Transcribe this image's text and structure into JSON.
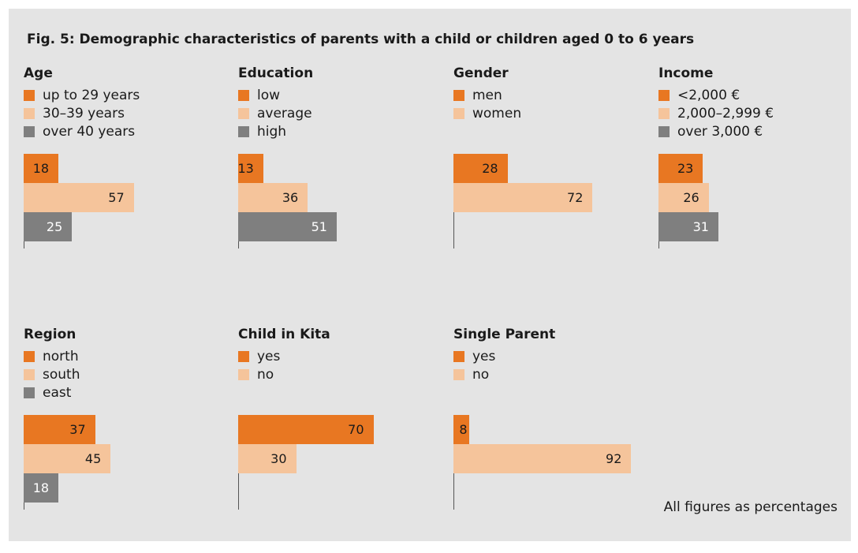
{
  "title": "Fig. 5: Demographic characteristics of parents with a child or children aged 0 to 6 years",
  "footnote": "All figures as percentages",
  "colors": {
    "dark": "#e87722",
    "light": "#f5c49b",
    "grey": "#7f7f7f",
    "background": "#e4e4e4"
  },
  "chart_data": [
    {
      "type": "bar",
      "orientation": "horizontal",
      "title": "Age",
      "categories": [
        "up to 29 years",
        "30–39 years",
        "over 40 years"
      ],
      "values": [
        18,
        57,
        25
      ],
      "colors": [
        "dark",
        "light",
        "grey"
      ]
    },
    {
      "type": "bar",
      "orientation": "horizontal",
      "title": "Education",
      "categories": [
        "low",
        "average",
        "high"
      ],
      "values": [
        13,
        36,
        51
      ],
      "colors": [
        "dark",
        "light",
        "grey"
      ]
    },
    {
      "type": "bar",
      "orientation": "horizontal",
      "title": "Gender",
      "categories": [
        "men",
        "women"
      ],
      "values": [
        28,
        72
      ],
      "colors": [
        "dark",
        "light"
      ]
    },
    {
      "type": "bar",
      "orientation": "horizontal",
      "title": "Income",
      "categories": [
        "<2,000 €",
        "2,000–2,999 €",
        "over 3,000 €"
      ],
      "values": [
        23,
        26,
        31
      ],
      "colors": [
        "dark",
        "light",
        "grey"
      ]
    },
    {
      "type": "bar",
      "orientation": "horizontal",
      "title": "Region",
      "categories": [
        "north",
        "south",
        "east"
      ],
      "values": [
        37,
        45,
        18
      ],
      "colors": [
        "dark",
        "light",
        "grey"
      ]
    },
    {
      "type": "bar",
      "orientation": "horizontal",
      "title": "Child in Kita",
      "categories": [
        "yes",
        "no"
      ],
      "values": [
        70,
        30
      ],
      "colors": [
        "dark",
        "light"
      ]
    },
    {
      "type": "bar",
      "orientation": "horizontal",
      "title": "Single Parent",
      "categories": [
        "yes",
        "no"
      ],
      "values": [
        8,
        92
      ],
      "colors": [
        "dark",
        "light"
      ]
    }
  ]
}
